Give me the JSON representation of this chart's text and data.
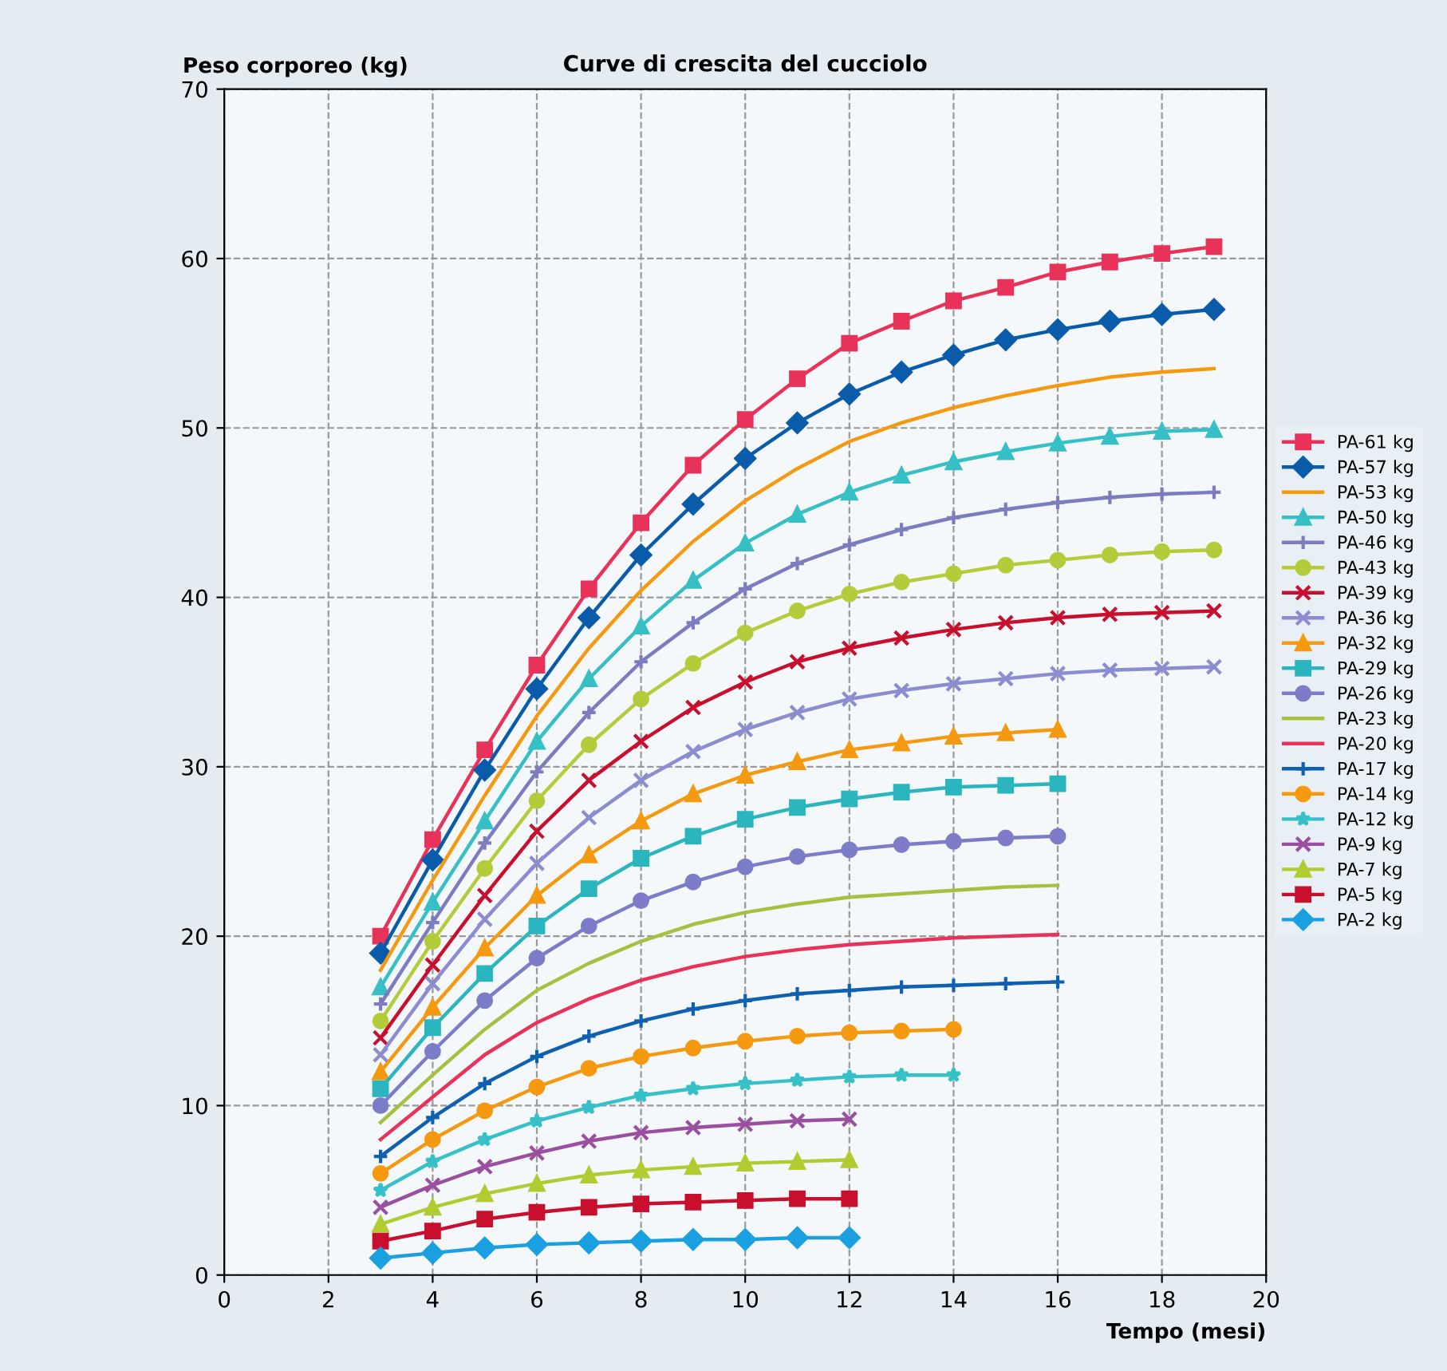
{
  "chart_data": {
    "type": "line",
    "title": "Curve di crescita del cucciolo",
    "xlabel": "Tempo (mesi)",
    "ylabel": "Peso corporeo (kg)",
    "x": [
      3,
      4,
      5,
      6,
      7,
      8,
      9,
      10,
      11,
      12,
      13,
      14,
      15,
      16,
      17,
      18,
      19
    ],
    "xlim": [
      0,
      20
    ],
    "xticks": [
      0,
      2,
      4,
      6,
      8,
      10,
      12,
      14,
      16,
      18,
      20
    ],
    "ylim": [
      0,
      70
    ],
    "yticks": [
      0,
      10,
      20,
      30,
      40,
      50,
      60,
      70
    ],
    "grid": true,
    "legend": "right",
    "line_style": "solid",
    "series": [
      {
        "name": "PA-61 kg",
        "color": "#e8325a",
        "marker": "square",
        "values": [
          20,
          25.7,
          31,
          36,
          40.5,
          44.4,
          47.8,
          50.5,
          52.9,
          55,
          56.3,
          57.5,
          58.3,
          59.2,
          59.8,
          60.3,
          60.7
        ]
      },
      {
        "name": "PA-57 kg",
        "color": "#0a5cab",
        "marker": "diamond",
        "values": [
          19,
          24.5,
          29.8,
          34.6,
          38.8,
          42.5,
          45.5,
          48.2,
          50.3,
          52,
          53.3,
          54.3,
          55.2,
          55.8,
          56.3,
          56.7,
          57
        ]
      },
      {
        "name": "PA-53 kg",
        "color": "#f59a10",
        "marker": "none",
        "values": [
          18,
          23.3,
          28.3,
          33,
          37,
          40.4,
          43.3,
          45.7,
          47.6,
          49.2,
          50.3,
          51.2,
          51.9,
          52.5,
          53,
          53.3,
          53.5
        ]
      },
      {
        "name": "PA-50 kg",
        "color": "#36bfc4",
        "marker": "triangle",
        "values": [
          17,
          22,
          26.8,
          31.5,
          35.2,
          38.3,
          41,
          43.2,
          44.9,
          46.2,
          47.2,
          48,
          48.6,
          49.1,
          49.5,
          49.8,
          49.9
        ]
      },
      {
        "name": "PA-46 kg",
        "color": "#7c7cbf",
        "marker": "plus",
        "values": [
          16,
          20.8,
          25.5,
          29.7,
          33.2,
          36.2,
          38.5,
          40.5,
          42,
          43.1,
          44,
          44.7,
          45.2,
          45.6,
          45.9,
          46.1,
          46.2
        ]
      },
      {
        "name": "PA-43 kg",
        "color": "#b5cc3a",
        "marker": "circle",
        "values": [
          15,
          19.7,
          24,
          28,
          31.3,
          34,
          36.1,
          37.9,
          39.2,
          40.2,
          40.9,
          41.4,
          41.9,
          42.2,
          42.5,
          42.7,
          42.8
        ]
      },
      {
        "name": "PA-39 kg",
        "color": "#c8102e",
        "marker": "cross",
        "values": [
          14,
          18.3,
          22.4,
          26.2,
          29.2,
          31.5,
          33.5,
          35,
          36.2,
          37,
          37.6,
          38.1,
          38.5,
          38.8,
          39,
          39.1,
          39.2
        ]
      },
      {
        "name": "PA-36 kg",
        "color": "#8c8cd0",
        "marker": "cross",
        "values": [
          13,
          17.2,
          21,
          24.3,
          27,
          29.2,
          30.9,
          32.2,
          33.2,
          34,
          34.5,
          34.9,
          35.2,
          35.5,
          35.7,
          35.8,
          35.9
        ]
      },
      {
        "name": "PA-32 kg",
        "color": "#f59a10",
        "marker": "triangle",
        "values": [
          12,
          15.8,
          19.3,
          22.4,
          24.8,
          26.8,
          28.4,
          29.5,
          30.3,
          31,
          31.4,
          31.8,
          32,
          32.2,
          null,
          null,
          null
        ]
      },
      {
        "name": "PA-29 kg",
        "color": "#2ab5bf",
        "marker": "square",
        "values": [
          11,
          14.6,
          17.8,
          20.6,
          22.8,
          24.6,
          25.9,
          26.9,
          27.6,
          28.1,
          28.5,
          28.8,
          28.9,
          29,
          null,
          null,
          null
        ]
      },
      {
        "name": "PA-26 kg",
        "color": "#7c7cc8",
        "marker": "circle",
        "values": [
          10,
          13.2,
          16.2,
          18.7,
          20.6,
          22.1,
          23.2,
          24.1,
          24.7,
          25.1,
          25.4,
          25.6,
          25.8,
          25.9,
          null,
          null,
          null
        ]
      },
      {
        "name": "PA-23 kg",
        "color": "#a8c040",
        "marker": "none",
        "values": [
          9,
          11.8,
          14.5,
          16.8,
          18.4,
          19.7,
          20.7,
          21.4,
          21.9,
          22.3,
          22.5,
          22.7,
          22.9,
          23,
          null,
          null,
          null
        ]
      },
      {
        "name": "PA-20 kg",
        "color": "#e8325a",
        "marker": "none",
        "values": [
          8,
          10.5,
          13,
          14.9,
          16.3,
          17.4,
          18.2,
          18.8,
          19.2,
          19.5,
          19.7,
          19.9,
          20,
          20.1,
          null,
          null,
          null
        ]
      },
      {
        "name": "PA-17 kg",
        "color": "#1060b0",
        "marker": "plus",
        "values": [
          7,
          9.3,
          11.3,
          12.9,
          14.1,
          15,
          15.7,
          16.2,
          16.6,
          16.8,
          17,
          17.1,
          17.2,
          17.3,
          null,
          null,
          null
        ]
      },
      {
        "name": "PA-14 kg",
        "color": "#f59a10",
        "marker": "circle",
        "values": [
          6,
          8,
          9.7,
          11.1,
          12.2,
          12.9,
          13.4,
          13.8,
          14.1,
          14.3,
          14.4,
          14.5,
          null,
          null,
          null,
          null,
          null
        ]
      },
      {
        "name": "PA-12 kg",
        "color": "#36c0c8",
        "marker": "star",
        "values": [
          5,
          6.7,
          8,
          9.1,
          9.9,
          10.6,
          11,
          11.3,
          11.5,
          11.7,
          11.8,
          11.8,
          null,
          null,
          null,
          null,
          null
        ]
      },
      {
        "name": "PA-9 kg",
        "color": "#9a4fa0",
        "marker": "cross",
        "values": [
          4,
          5.3,
          6.4,
          7.2,
          7.9,
          8.4,
          8.7,
          8.9,
          9.1,
          9.2,
          null,
          null,
          null,
          null,
          null,
          null,
          null
        ]
      },
      {
        "name": "PA-7 kg",
        "color": "#b0cc30",
        "marker": "triangle",
        "values": [
          3,
          4,
          4.8,
          5.4,
          5.9,
          6.2,
          6.4,
          6.6,
          6.7,
          6.8,
          null,
          null,
          null,
          null,
          null,
          null,
          null
        ]
      },
      {
        "name": "PA-5 kg",
        "color": "#c8102e",
        "marker": "square",
        "values": [
          2,
          2.6,
          3.3,
          3.7,
          4,
          4.2,
          4.3,
          4.4,
          4.5,
          4.5,
          null,
          null,
          null,
          null,
          null,
          null,
          null
        ]
      },
      {
        "name": "PA-2 kg",
        "color": "#1aa0e0",
        "marker": "diamond",
        "values": [
          1,
          1.3,
          1.6,
          1.8,
          1.9,
          2,
          2.1,
          2.1,
          2.2,
          2.2,
          null,
          null,
          null,
          null,
          null,
          null,
          null
        ]
      }
    ]
  }
}
